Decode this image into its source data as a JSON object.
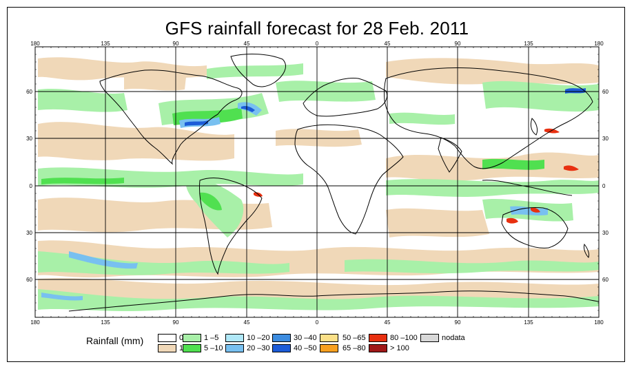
{
  "title": "GFS rainfall forecast for 28 Feb. 2011",
  "axes": {
    "lon_ticks": [
      "180",
      "135",
      "90",
      "45",
      "0",
      "45",
      "90",
      "135",
      "180"
    ],
    "lat_ticks": [
      "60",
      "30",
      "0",
      "30",
      "60"
    ]
  },
  "legend": {
    "title": "Rainfall (mm)",
    "items": [
      {
        "label": "0",
        "color": "#ffffff"
      },
      {
        "label": "1",
        "color": "#f0d8b8"
      },
      {
        "label": "1 –5",
        "color": "#a8f0a8"
      },
      {
        "label": "5 –10",
        "color": "#50e050"
      },
      {
        "label": "10 –20",
        "color": "#b0e8f8"
      },
      {
        "label": "20 –30",
        "color": "#78c0f0"
      },
      {
        "label": "30 –40",
        "color": "#3c8ce0"
      },
      {
        "label": "40 –50",
        "color": "#1c5cd8"
      },
      {
        "label": "50 –65",
        "color": "#fbe088"
      },
      {
        "label": "65 –80",
        "color": "#f8a020"
      },
      {
        "label": "80 –100",
        "color": "#e83010"
      },
      {
        "label": "> 100",
        "color": "#a01818"
      },
      {
        "label": "nodata",
        "color": "#d8d8d8"
      }
    ]
  }
}
